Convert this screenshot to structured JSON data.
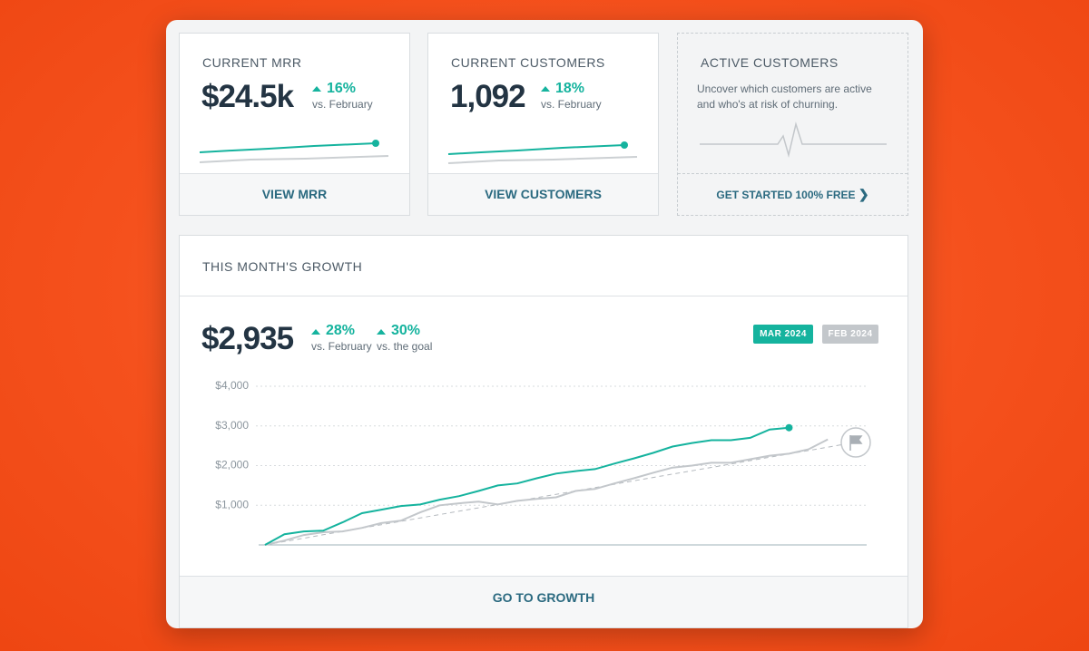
{
  "cards": [
    {
      "title": "CURRENT MRR",
      "value": "$24.5k",
      "change": "16%",
      "compare": "vs. February",
      "action": "VIEW MRR"
    },
    {
      "title": "CURRENT CUSTOMERS",
      "value": "1,092",
      "change": "18%",
      "compare": "vs. February",
      "action": "VIEW CUSTOMERS"
    },
    {
      "title": "ACTIVE CUSTOMERS",
      "description": "Uncover which customers are active and who's at risk of churning.",
      "action": "GET STARTED 100% FREE"
    }
  ],
  "growth": {
    "title": "THIS MONTH'S GROWTH",
    "value": "$2,935",
    "changes": [
      {
        "change": "28%",
        "compare": "vs. February"
      },
      {
        "change": "30%",
        "compare": "vs. the goal"
      }
    ],
    "action": "GO TO GROWTH"
  },
  "chart_data": {
    "type": "line",
    "categories": [
      null,
      null,
      null,
      null,
      null,
      null,
      null,
      null,
      null,
      null,
      null,
      null,
      null,
      null,
      null,
      null,
      null,
      null,
      null,
      null,
      null,
      null,
      null,
      null,
      null,
      null,
      null,
      null,
      null,
      null,
      null,
      null
    ],
    "series": [
      {
        "name": "MAR 2024",
        "color": "#15b39e",
        "values": [
          0,
          270,
          340,
          360,
          570,
          800,
          890,
          980,
          1020,
          1140,
          1230,
          1360,
          1500,
          1550,
          1680,
          1800,
          1860,
          1910,
          2050,
          2180,
          2320,
          2480,
          2570,
          2640,
          2640,
          2700,
          2910,
          2955,
          null,
          null,
          null,
          null
        ]
      },
      {
        "name": "FEB 2024",
        "color": "#c3c7cb",
        "values": [
          0,
          110,
          250,
          320,
          340,
          430,
          550,
          610,
          820,
          1000,
          1050,
          1090,
          1020,
          1110,
          1160,
          1200,
          1360,
          1410,
          1550,
          1680,
          1820,
          1950,
          2000,
          2070,
          2070,
          2160,
          2250,
          2300,
          2410,
          2660,
          null,
          null
        ]
      },
      {
        "color": "#b5babf",
        "dashed": true,
        "values": [
          0,
          85,
          170,
          255,
          340,
          425,
          510,
          595,
          680,
          765,
          850,
          935,
          1020,
          1105,
          1190,
          1275,
          1360,
          1445,
          1530,
          1615,
          1700,
          1785,
          1870,
          1955,
          2040,
          2125,
          2210,
          2295,
          2380,
          2465,
          2550,
          null
        ]
      }
    ],
    "ylim": [
      0,
      4000
    ],
    "yticks": [
      {
        "value": 1000,
        "label": "$1,000"
      },
      {
        "value": 2000,
        "label": "$2,000"
      },
      {
        "value": 3000,
        "label": "$3,000"
      },
      {
        "value": 4000,
        "label": "$4,000"
      }
    ],
    "grid": true
  }
}
